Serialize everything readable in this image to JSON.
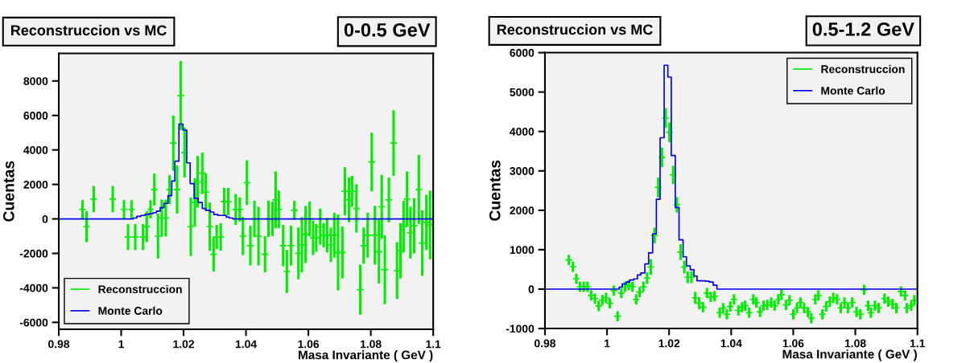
{
  "chart_data": [
    {
      "type": "scatter",
      "title": "Reconstruccion vs MC",
      "subtitle": "0-0.5 GeV",
      "xlabel": "Masa Invariante ( GeV )",
      "ylabel": "Cuentas",
      "xlim": [
        0.98,
        1.1
      ],
      "xticks": [
        0.98,
        1,
        1.02,
        1.04,
        1.06,
        1.08,
        1.1
      ],
      "ylim": [
        -6400,
        9600
      ],
      "yticks": [
        -6000,
        -4000,
        -2000,
        0,
        2000,
        4000,
        6000,
        8000
      ],
      "legend": "bottom left",
      "grid": false,
      "series": [
        {
          "name": "Reconstruccion",
          "color": "#00ee00",
          "marker": "cross",
          "x": [
            0.9876,
            0.9889,
            0.9912,
            0.9973,
            1.0009,
            1.0022,
            1.0033,
            1.0045,
            1.007,
            1.0082,
            1.0094,
            1.0106,
            1.0118,
            1.013,
            1.0143,
            1.0155,
            1.0167,
            1.0179,
            1.0191,
            1.0203,
            1.0223,
            1.0236,
            1.0245,
            1.026,
            1.0271,
            1.0284,
            1.0296,
            1.0306,
            1.0319,
            1.033,
            1.0343,
            1.0367,
            1.038,
            1.039,
            1.0403,
            1.0414,
            1.0427,
            1.044,
            1.0461,
            1.0472,
            1.0485,
            1.0495,
            1.0505,
            1.0519,
            1.0531,
            1.0544,
            1.0555,
            1.0568,
            1.0579,
            1.0591,
            1.0604,
            1.0615,
            1.0625,
            1.0638,
            1.0649,
            1.066,
            1.0672,
            1.0683,
            1.0695,
            1.0709,
            1.0717,
            1.073,
            1.074,
            1.0754,
            1.0766,
            1.0777,
            1.079,
            1.0803,
            1.0813,
            1.0826,
            1.0835,
            1.0845,
            1.0858,
            1.0873,
            1.0884,
            1.0895,
            1.0905,
            1.0916,
            1.0927,
            1.0939,
            1.0954,
            1.0965,
            1.0978,
            1.099
          ],
          "values": [
            550,
            -450,
            1150,
            1150,
            550,
            -1050,
            550,
            -1050,
            -1050,
            -450,
            550,
            1700,
            -1000,
            50,
            50,
            1700,
            4400,
            1700,
            7150,
            3850,
            -450,
            950,
            2150,
            2650,
            1550,
            -450,
            -2050,
            -1050,
            -1050,
            1000,
            1000,
            550,
            550,
            -1000,
            2100,
            -1550,
            0,
            -1000,
            -2050,
            0,
            0,
            1100,
            550,
            -1550,
            -3050,
            -1550,
            500,
            -2000,
            -1500,
            -900,
            0,
            -1100,
            -1100,
            -450,
            -950,
            -950,
            -1500,
            -950,
            -1950,
            -1950,
            1600,
            1100,
            1600,
            600,
            -4100,
            -1550,
            -950,
            3300,
            -950,
            -1900,
            700,
            -2950,
            1100,
            4400,
            -3000,
            -1850,
            -450,
            1150,
            -800,
            -400,
            1700,
            -1400,
            -200,
            -350
          ],
          "errors": [
            530,
            900,
            760,
            760,
            530,
            750,
            530,
            750,
            750,
            900,
            530,
            920,
            1300,
            1070,
            1070,
            830,
            1600,
            1400,
            2000,
            1450,
            1700,
            1400,
            1500,
            1200,
            1100,
            1400,
            1000,
            700,
            800,
            800,
            800,
            900,
            700,
            1100,
            1300,
            1150,
            1050,
            1700,
            1050,
            1050,
            1000,
            1650,
            1100,
            1200,
            1250,
            1150,
            550,
            1500,
            1600,
            1650,
            1000,
            1000,
            800,
            1050,
            700,
            1000,
            1000,
            1300,
            2200,
            1500,
            1400,
            1300,
            900,
            1400,
            1450,
            1050,
            1300,
            1700,
            1700,
            1850,
            1850,
            2000,
            1300,
            1900,
            1650,
            1600,
            1500,
            1600,
            1500,
            1600,
            2000,
            1900,
            1600,
            2000
          ]
        },
        {
          "name": "Monte Carlo",
          "color": "#0000ee",
          "type": "step",
          "x": [
            0.98,
            1.0039,
            1.005,
            1.0063,
            1.0076,
            1.0089,
            1.0101,
            1.0113,
            1.0125,
            1.0137,
            1.015,
            1.0162,
            1.0172,
            1.0185,
            1.0198,
            1.021,
            1.0221,
            1.0234,
            1.0247,
            1.026,
            1.0272,
            1.0286,
            1.0297,
            1.031,
            1.0337,
            1.0347,
            1.0358,
            1.1
          ],
          "values": [
            0,
            50,
            150,
            200,
            250,
            300,
            350,
            450,
            650,
            900,
            1350,
            2200,
            3350,
            5500,
            5150,
            3250,
            2050,
            1200,
            950,
            600,
            500,
            400,
            250,
            200,
            100,
            50,
            0,
            0
          ]
        }
      ]
    },
    {
      "type": "scatter",
      "title": "Reconstruccion vs MC",
      "subtitle": "0.5-1.2 GeV",
      "xlabel": "Masa Invariante ( GeV )",
      "ylabel": "Cuentas",
      "xlim": [
        0.98,
        1.1
      ],
      "xticks": [
        0.98,
        1,
        1.02,
        1.04,
        1.06,
        1.08,
        1.1
      ],
      "ylim": [
        -1000,
        6000
      ],
      "yticks": [
        -1000,
        0,
        1000,
        2000,
        3000,
        4000,
        5000,
        6000
      ],
      "legend": "top right",
      "grid": false,
      "series": [
        {
          "name": "Reconstruccion",
          "color": "#00ee00",
          "marker": "cross",
          "x": [
            0.9877,
            0.989,
            0.9901,
            0.9913,
            0.9925,
            0.9937,
            0.9949,
            0.9961,
            0.9973,
            0.9985,
            0.9997,
            1.0009,
            1.0022,
            1.0034,
            1.0046,
            1.0058,
            1.007,
            1.0082,
            1.0094,
            1.0105,
            1.0117,
            1.0129,
            1.0141,
            1.0153,
            1.0165,
            1.0177,
            1.0189,
            1.0201,
            1.0213,
            1.0225,
            1.0237,
            1.0249,
            1.026,
            1.0272,
            1.0284,
            1.0297,
            1.0309,
            1.0322,
            1.0334,
            1.0346,
            1.0363,
            1.0374,
            1.0386,
            1.0397,
            1.0409,
            1.0423,
            1.0435,
            1.0445,
            1.0458,
            1.0471,
            1.0481,
            1.0493,
            1.0504,
            1.0516,
            1.0529,
            1.054,
            1.0552,
            1.0562,
            1.0577,
            1.0588,
            1.06,
            1.0612,
            1.0623,
            1.0635,
            1.0647,
            1.0658,
            1.0671,
            1.0681,
            1.0694,
            1.0706,
            1.0718,
            1.0729,
            1.0741,
            1.0753,
            1.0765,
            1.0776,
            1.079,
            1.0804,
            1.0816,
            1.0828,
            1.0841,
            1.085,
            1.0863,
            1.0875,
            1.0894,
            1.0906,
            1.092,
            1.0932,
            1.0947,
            1.096,
            1.0966,
            1.098,
            1.099
          ],
          "values": [
            740,
            570,
            260,
            60,
            60,
            60,
            -160,
            -240,
            -430,
            -280,
            -220,
            -360,
            -40,
            -690,
            -100,
            60,
            100,
            60,
            -260,
            -80,
            60,
            280,
            560,
            1360,
            2580,
            3340,
            4340,
            3980,
            2900,
            2140,
            940,
            560,
            300,
            300,
            -220,
            -360,
            -460,
            -100,
            -200,
            -180,
            -600,
            -480,
            -640,
            -440,
            -260,
            -540,
            -460,
            -420,
            -600,
            -260,
            -340,
            -580,
            -420,
            -400,
            -340,
            -420,
            -260,
            -140,
            -400,
            -280,
            -640,
            -480,
            -340,
            -480,
            -580,
            -740,
            -260,
            -160,
            -640,
            -440,
            -320,
            -220,
            -260,
            -480,
            -340,
            -480,
            -340,
            -580,
            -640,
            -20,
            -420,
            -600,
            -420,
            -480,
            -240,
            -320,
            -380,
            -480,
            -60,
            -160,
            -480,
            -420,
            -280
          ],
          "errors": [
            130,
            130,
            130,
            130,
            130,
            130,
            130,
            130,
            130,
            130,
            130,
            130,
            130,
            130,
            130,
            130,
            130,
            130,
            130,
            130,
            130,
            150,
            200,
            200,
            250,
            250,
            250,
            250,
            230,
            200,
            200,
            160,
            150,
            150,
            150,
            150,
            130,
            130,
            130,
            130,
            130,
            130,
            130,
            130,
            130,
            130,
            130,
            130,
            130,
            130,
            130,
            130,
            130,
            130,
            130,
            130,
            130,
            130,
            130,
            130,
            130,
            130,
            130,
            130,
            130,
            130,
            130,
            130,
            130,
            130,
            130,
            130,
            130,
            130,
            130,
            130,
            130,
            130,
            130,
            130,
            130,
            130,
            130,
            130,
            130,
            130,
            130,
            130,
            130,
            130,
            130,
            130,
            130
          ]
        },
        {
          "name": "Monte Carlo",
          "color": "#0000ee",
          "type": "step",
          "x": [
            0.98,
            1.0039,
            1.0049,
            1.0062,
            1.0073,
            1.0086,
            1.0098,
            1.0109,
            1.0122,
            1.0134,
            1.0147,
            1.0159,
            1.0171,
            1.0184,
            1.0196,
            1.0207,
            1.022,
            1.0232,
            1.0245,
            1.0256,
            1.0268,
            1.028,
            1.029,
            1.0316,
            1.0329,
            1.0342,
            1.0354,
            1.1
          ],
          "values": [
            0,
            50,
            130,
            180,
            230,
            260,
            360,
            410,
            640,
            920,
            1400,
            2280,
            3840,
            5680,
            5380,
            3390,
            2070,
            1250,
            820,
            590,
            490,
            330,
            210,
            200,
            180,
            100,
            0,
            0
          ]
        }
      ]
    }
  ]
}
